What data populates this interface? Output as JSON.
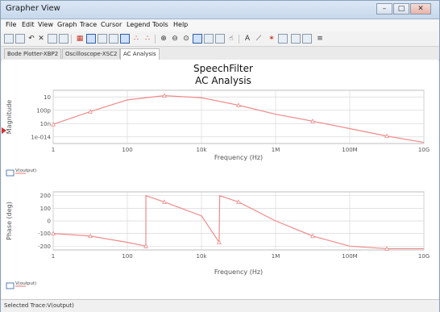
{
  "window": {
    "title": "Grapher View"
  },
  "menu": [
    "File",
    "Edit",
    "View",
    "Graph",
    "Trace",
    "Cursor",
    "Legend",
    "Tools",
    "Help"
  ],
  "tabs": [
    "Bode Plotter-XBP2",
    "Oscilloscope-XSC2",
    "AC Analysis"
  ],
  "active_tab": "AC Analysis",
  "plot": {
    "title_line1": "SpeechFilter",
    "title_line2": "AC Analysis"
  },
  "status": {
    "text": "Selected Trace:V(output)"
  },
  "colors": {
    "trace": "#f08a8a",
    "grid": "#d9d9d9",
    "accent": "#2d5fa8"
  },
  "icons": [
    "new-icon",
    "open-icon",
    "undo-icon",
    "delete-icon",
    "copy-icon",
    "paste-icon",
    "grid-icon",
    "legend-icon",
    "zoom-icon",
    "cursor-icon"
  ],
  "chart_data": [
    {
      "type": "line",
      "title": "",
      "xlabel": "Frequency (Hz)",
      "ylabel": "Magnitude",
      "x_scale": "log",
      "x_ticks": [
        "1",
        "100",
        "10k",
        "1M",
        "100M",
        "10G"
      ],
      "y_scale": "log",
      "y_ticks": [
        "10",
        "100p",
        "10n",
        "1e-014"
      ],
      "grid": true,
      "legend": "bottom-left",
      "series": [
        {
          "name": "V(output)",
          "x": [
            1,
            10,
            100,
            1000,
            10000,
            100000,
            1000000,
            10000000,
            100000000,
            1000000000,
            10000000000
          ],
          "y_ticklevel": [
            0.36,
            0.6,
            0.82,
            0.9,
            0.86,
            0.72,
            0.55,
            0.42,
            0.28,
            0.14,
            0.02
          ]
        }
      ]
    },
    {
      "type": "line",
      "title": "",
      "xlabel": "Frequency (Hz)",
      "ylabel": "Phase (deg)",
      "x_scale": "log",
      "x_ticks": [
        "1",
        "100",
        "10k",
        "1M",
        "100M",
        "10G"
      ],
      "y_ticks": [
        200,
        100,
        0,
        -100,
        -200
      ],
      "ylim": [
        -230,
        230
      ],
      "grid": true,
      "legend": "bottom-left",
      "series": [
        {
          "name": "V(output)",
          "x": [
            1,
            10,
            100,
            316,
            317,
            1000,
            10000,
            30000,
            31000,
            100000,
            1000000,
            10000000,
            100000000,
            1000000000,
            10000000000
          ],
          "y": [
            -100,
            -120,
            -170,
            -200,
            200,
            150,
            40,
            -170,
            200,
            150,
            0,
            -120,
            -200,
            -220,
            -220
          ]
        }
      ]
    }
  ]
}
